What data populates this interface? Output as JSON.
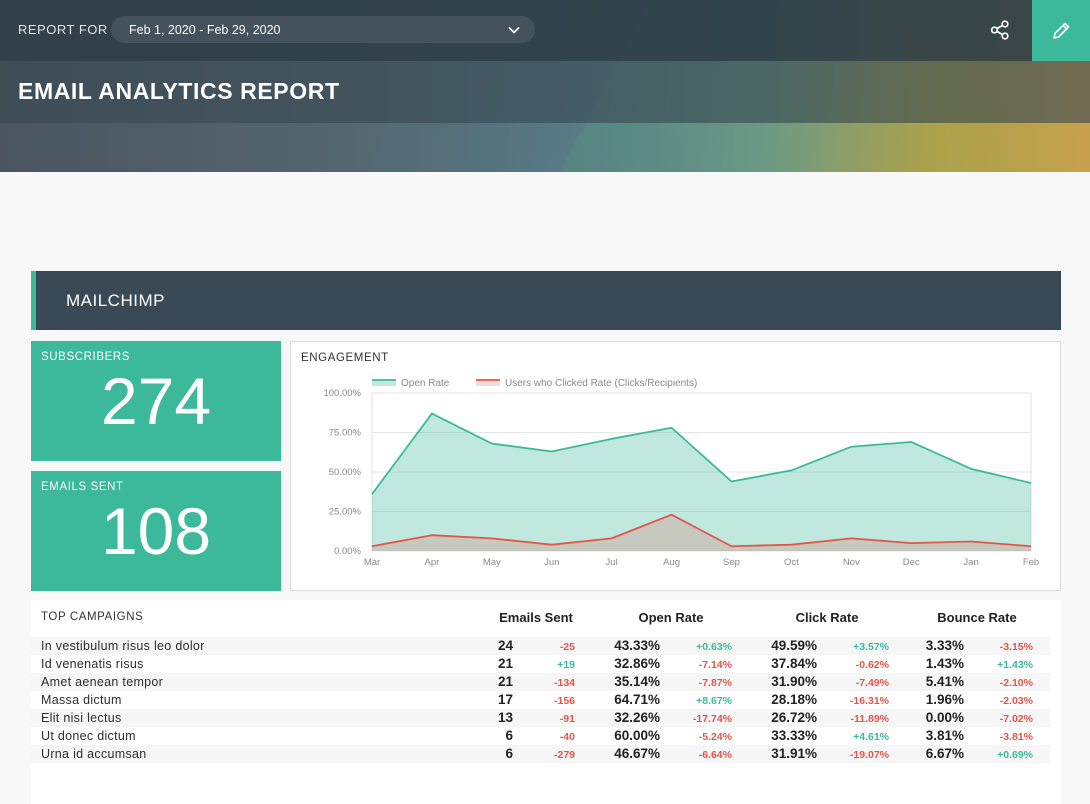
{
  "header": {
    "report_for_label": "REPORT FOR",
    "date_range": "Feb 1, 2020 - Feb 29, 2020",
    "title": "EMAIL ANALYTICS REPORT",
    "accent_color": "#3cb99b"
  },
  "section": {
    "title": "MAILCHIMP"
  },
  "kpis": {
    "subscribers": {
      "label": "SUBSCRIBERS",
      "value": "274"
    },
    "emails_sent": {
      "label": "EMAILS SENT",
      "value": "108"
    }
  },
  "engagement": {
    "label": "ENGAGEMENT",
    "chart_data": {
      "type": "area",
      "categories": [
        "Mar",
        "Apr",
        "May",
        "Jun",
        "Jul",
        "Aug",
        "Sep",
        "Oct",
        "Nov",
        "Dec",
        "Jan",
        "Feb"
      ],
      "series": [
        {
          "name": "Open Rate",
          "color": "#3cb99b",
          "values": [
            36,
            87,
            68,
            63,
            71,
            78,
            44,
            51,
            66,
            69,
            52,
            43
          ]
        },
        {
          "name": "Users who Clicked Rate (Clicks/Recipients)",
          "color": "#e0574a",
          "values": [
            3,
            10,
            8,
            4,
            8,
            23,
            3,
            4,
            8,
            5,
            6,
            3
          ]
        }
      ],
      "y_ticks": [
        "100.00%",
        "75.00%",
        "50.00%",
        "25.00%",
        "0.00%"
      ],
      "ylim": [
        0,
        100
      ],
      "grid": true,
      "legend": "top-left"
    }
  },
  "campaigns": {
    "title": "TOP CAMPAIGNS",
    "columns": [
      "Emails Sent",
      "Open Rate",
      "Click Rate",
      "Bounce Rate"
    ],
    "rows": [
      {
        "name": "In vestibulum risus leo dolor",
        "sent": "24",
        "sent_delta": "-25",
        "open": "43.33%",
        "open_delta": "+0.63%",
        "click": "49.59%",
        "click_delta": "+3.57%",
        "bounce": "3.33%",
        "bounce_delta": "-3.15%"
      },
      {
        "name": "Id venenatis risus",
        "sent": "21",
        "sent_delta": "+19",
        "open": "32.86%",
        "open_delta": "-7.14%",
        "click": "37.84%",
        "click_delta": "-0.62%",
        "bounce": "1.43%",
        "bounce_delta": "+1.43%"
      },
      {
        "name": "Amet aenean tempor",
        "sent": "21",
        "sent_delta": "-134",
        "open": "35.14%",
        "open_delta": "-7.87%",
        "click": "31.90%",
        "click_delta": "-7.49%",
        "bounce": "5.41%",
        "bounce_delta": "-2.10%"
      },
      {
        "name": "Massa dictum",
        "sent": "17",
        "sent_delta": "-156",
        "open": "64.71%",
        "open_delta": "+8.67%",
        "click": "28.18%",
        "click_delta": "-16.31%",
        "bounce": "1.96%",
        "bounce_delta": "-2.03%"
      },
      {
        "name": "Elit nisi lectus",
        "sent": "13",
        "sent_delta": "-91",
        "open": "32.26%",
        "open_delta": "-17.74%",
        "click": "26.72%",
        "click_delta": "-11.89%",
        "bounce": "0.00%",
        "bounce_delta": "-7.02%"
      },
      {
        "name": "Ut donec dictum",
        "sent": "6",
        "sent_delta": "-40",
        "open": "60.00%",
        "open_delta": "-5.24%",
        "click": "33.33%",
        "click_delta": "+4.61%",
        "bounce": "3.81%",
        "bounce_delta": "-3.81%"
      },
      {
        "name": "Urna id accumsan",
        "sent": "6",
        "sent_delta": "-279",
        "open": "46.67%",
        "open_delta": "-6.64%",
        "click": "31.91%",
        "click_delta": "-19.07%",
        "bounce": "6.67%",
        "bounce_delta": "+0.69%"
      }
    ]
  }
}
